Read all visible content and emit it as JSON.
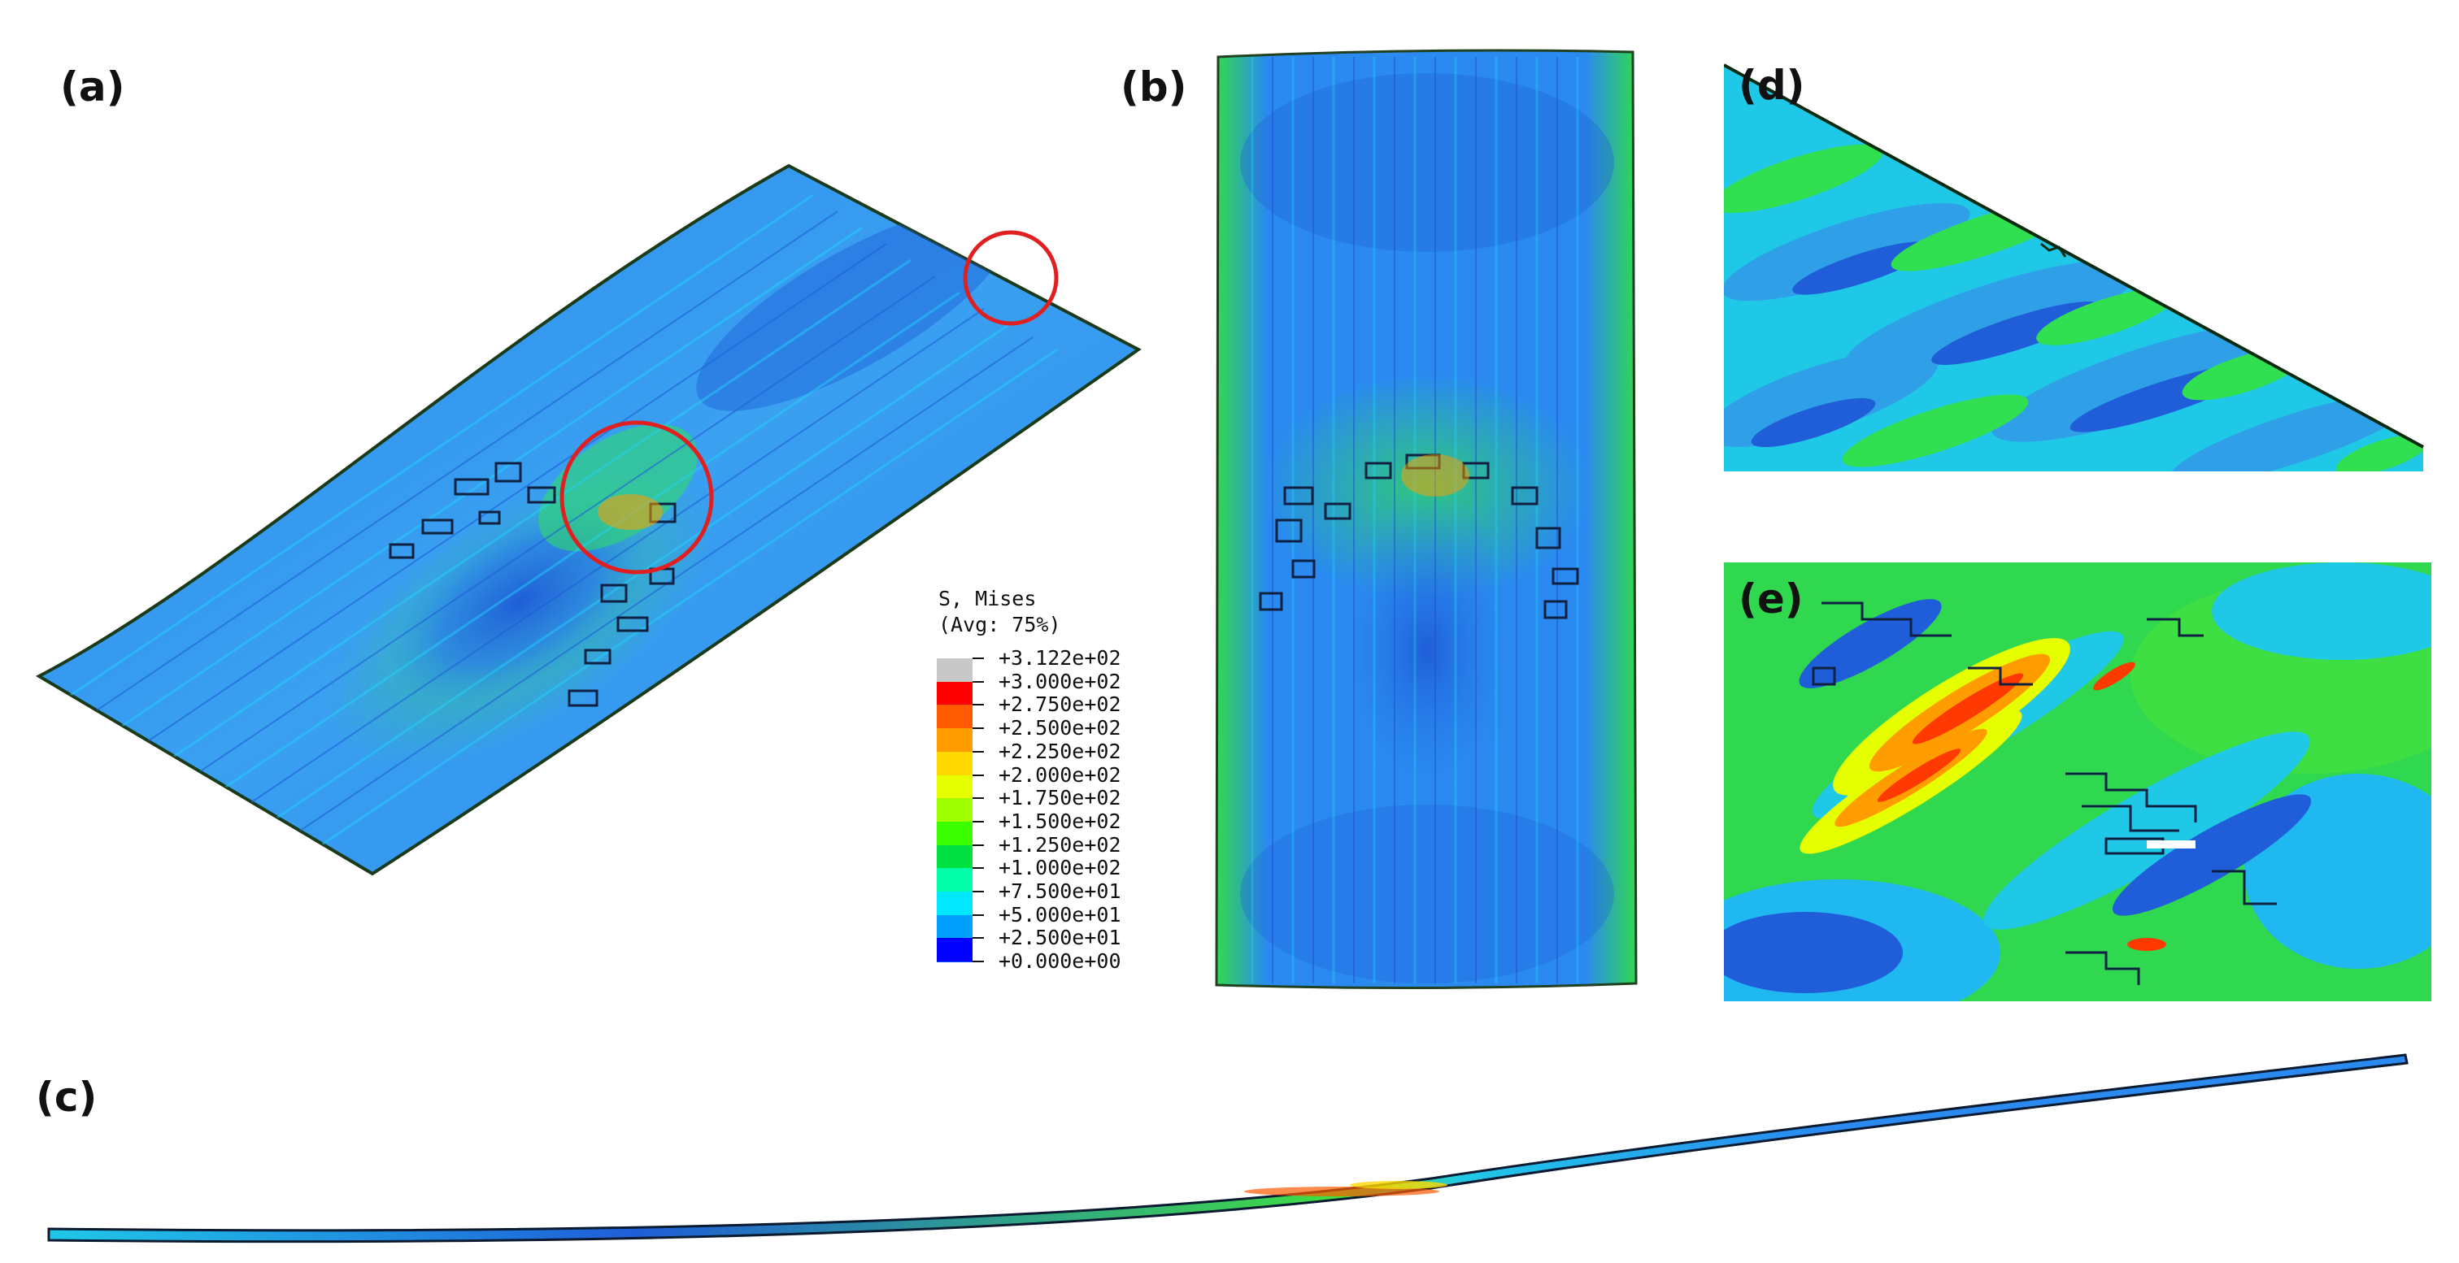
{
  "panels": {
    "a": "(a)",
    "b": "(b)",
    "c": "(c)",
    "d": "(d)",
    "e": "(e)"
  },
  "legend": {
    "title_line1": "S, Mises",
    "title_line2": "(Avg: 75%)",
    "entries": [
      {
        "label": "+3.122e+02",
        "color": "#c8c8c8"
      },
      {
        "label": "+3.000e+02",
        "color": "#ff0000"
      },
      {
        "label": "+2.750e+02",
        "color": "#ff5a00"
      },
      {
        "label": "+2.500e+02",
        "color": "#ff9c00"
      },
      {
        "label": "+2.250e+02",
        "color": "#ffd800"
      },
      {
        "label": "+2.000e+02",
        "color": "#e6ff00"
      },
      {
        "label": "+1.750e+02",
        "color": "#a0ff00"
      },
      {
        "label": "+1.500e+02",
        "color": "#3cff00"
      },
      {
        "label": "+1.250e+02",
        "color": "#00e040"
      },
      {
        "label": "+1.000e+02",
        "color": "#00ffa8"
      },
      {
        "label": "+7.500e+01",
        "color": "#00e8ff"
      },
      {
        "label": "+5.000e+01",
        "color": "#00a0ff"
      },
      {
        "label": "+2.500e+01",
        "color": "#0050ff"
      },
      {
        "label": "+0.000e+00",
        "color": "#0000ff"
      }
    ]
  },
  "colors": {
    "base_blue": "#2a8af0",
    "dark_blue": "#1f5ed8",
    "cyan": "#20d8ff",
    "green": "#10e040",
    "annotation_circle": "#e02020"
  }
}
